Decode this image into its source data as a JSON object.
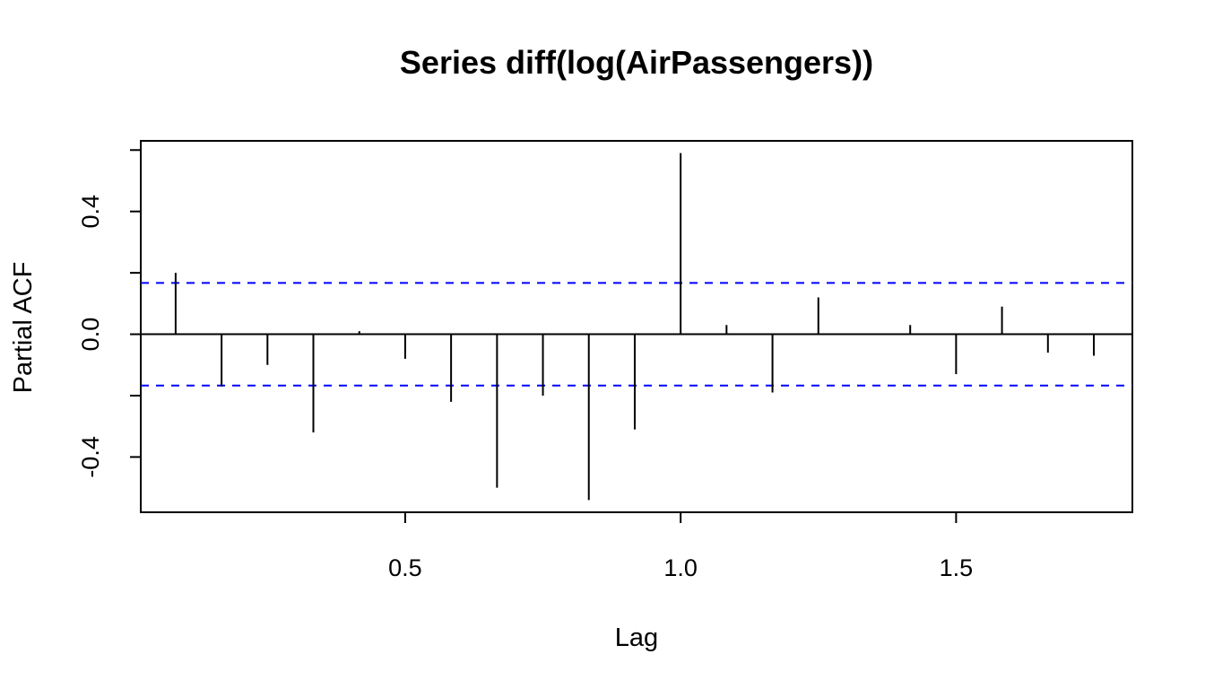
{
  "chart_data": {
    "type": "bar",
    "title": "Series  diff(log(AirPassengers))",
    "xlabel": "Lag",
    "ylabel": "Partial ACF",
    "xlim": [
      0.02,
      1.82
    ],
    "ylim": [
      -0.58,
      0.63
    ],
    "x_ticks": [
      0.5,
      1.0,
      1.5
    ],
    "x_tick_labels": [
      "0.5",
      "1.0",
      "1.5"
    ],
    "y_ticks": [
      -0.4,
      -0.2,
      0.0,
      0.2,
      0.4,
      0.6
    ],
    "y_tick_labels": [
      "-0.4",
      "",
      "0.0",
      "",
      "0.4",
      ""
    ],
    "confidence_limits": [
      0.167,
      -0.167
    ],
    "confidence_line_color": "#0000ff",
    "zero_line": true,
    "x": [
      0.0833,
      0.1667,
      0.25,
      0.3333,
      0.4167,
      0.5,
      0.5833,
      0.6667,
      0.75,
      0.8333,
      0.9167,
      1.0,
      1.0833,
      1.1667,
      1.25,
      1.3333,
      1.4167,
      1.5,
      1.5833,
      1.6667,
      1.75
    ],
    "values": [
      0.2,
      -0.17,
      -0.1,
      -0.32,
      0.01,
      -0.08,
      -0.22,
      -0.5,
      -0.2,
      -0.54,
      -0.31,
      0.59,
      0.03,
      -0.19,
      0.12,
      0.0,
      0.03,
      -0.13,
      0.09,
      -0.06,
      -0.07
    ]
  }
}
